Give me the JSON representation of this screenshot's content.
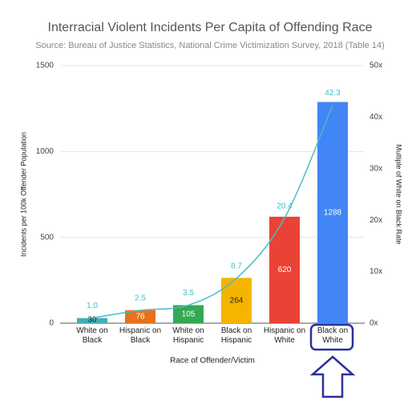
{
  "chart_data": {
    "type": "combo",
    "title": "Interracial Violent Incidents Per Capita of Offending Race",
    "subtitle": "Source: Bureau of Justice Statistics, National Crime Victimization Survey, 2018 (Table 14)",
    "y_label": "Incidents per 100k Offender Population",
    "y2_label": "Multiple of White on Black Rate",
    "x_label": "Race of Offender/Victim",
    "categories": [
      "White on Black",
      "Hispanic on Black",
      "White on Hispanic",
      "Black on Hispanic",
      "Hispanic on White",
      "Black on White"
    ],
    "series": [
      {
        "type": "bar",
        "values": [
          30,
          76,
          105,
          264,
          620,
          1288
        ],
        "colors": [
          "#3fb0b8",
          "#e8711a",
          "#34a853",
          "#f4b400",
          "#ea4335",
          "#4285f4"
        ]
      },
      {
        "type": "line",
        "axis": "y2",
        "values": [
          1.0,
          2.5,
          3.5,
          8.7,
          20.4,
          42.3
        ],
        "value_labels": [
          "1.0",
          "2.5",
          "3.5",
          "8.7",
          "20.4",
          "42.3"
        ],
        "color": "#46bdc6"
      }
    ],
    "ylim": [
      0,
      1500
    ],
    "yticks": [
      0,
      500,
      1000,
      1500
    ],
    "y2lim": [
      0,
      50
    ],
    "y2ticks": [
      {
        "value": 0,
        "label": "0x"
      },
      {
        "value": 10,
        "label": "10x"
      },
      {
        "value": 20,
        "label": "20x"
      },
      {
        "value": 30,
        "label": "30x"
      },
      {
        "value": 40,
        "label": "40x"
      },
      {
        "value": 50,
        "label": "50x"
      }
    ],
    "grid": true
  }
}
